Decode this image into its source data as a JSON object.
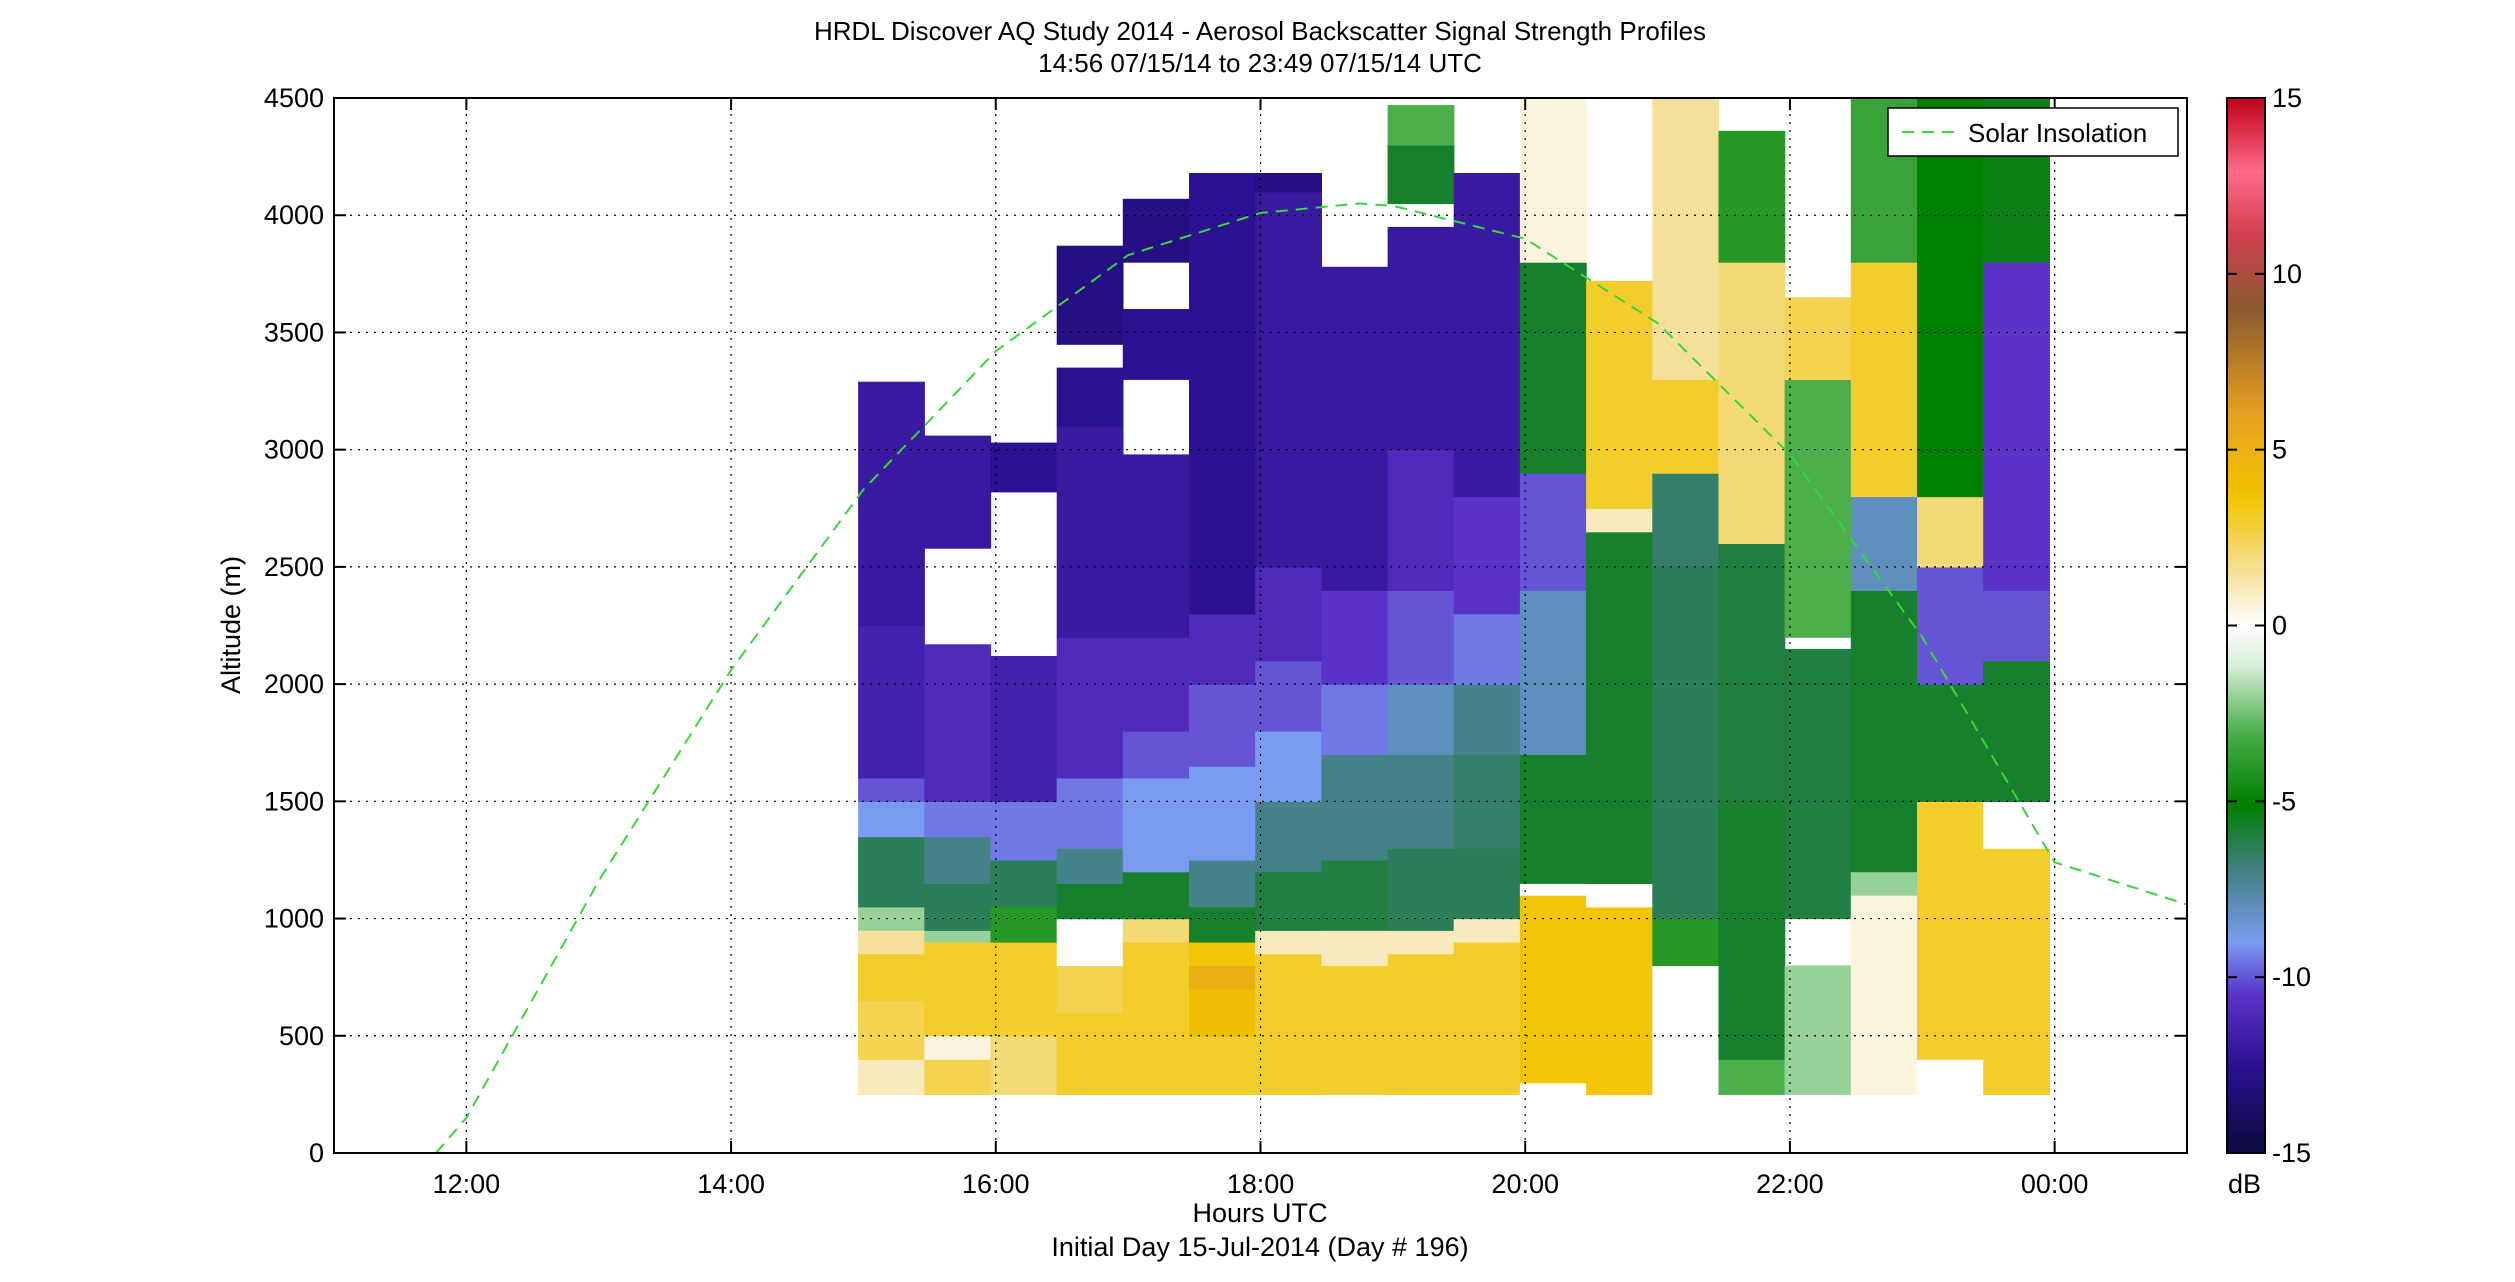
{
  "chart_data": {
    "type": "heatmap",
    "title": "HRDL Discover AQ Study 2014 - Aerosol Backscatter Signal Strength Profiles",
    "subtitle": "14:56 07/15/14 to 23:49 07/15/14  UTC",
    "xlabel": "Hours UTC",
    "xlabel2": "Initial Day 15-Jul-2014 (Day # 196)",
    "ylabel": "Altitude (m)",
    "x_ticks": [
      12,
      14,
      16,
      18,
      20,
      22,
      24
    ],
    "x_tick_labels": [
      "12:00",
      "14:00",
      "16:00",
      "18:00",
      "20:00",
      "22:00",
      "00:00"
    ],
    "xlim": [
      11,
      25
    ],
    "y_ticks": [
      0,
      500,
      1000,
      1500,
      2000,
      2500,
      3000,
      3500,
      4000,
      4500
    ],
    "y_tick_labels": [
      "0",
      "500",
      "1000",
      "1500",
      "2000",
      "2500",
      "3000",
      "3500",
      "4000",
      "4500"
    ],
    "ylim": [
      0,
      4500
    ],
    "grid": true,
    "colorbar": {
      "label": "dB",
      "range": [
        -15,
        15
      ],
      "ticks": [
        -15,
        -10,
        -5,
        0,
        5,
        10,
        15
      ],
      "tick_labels": [
        "-15",
        "-10",
        "-5",
        "0",
        "5",
        "10",
        "15"
      ]
    },
    "legend": {
      "position": "top-right",
      "entries": [
        "Solar Insolation"
      ]
    },
    "solar_insolation": {
      "x": [
        11.77,
        12,
        13,
        14,
        15,
        16,
        17,
        18,
        18.75,
        19,
        20,
        21,
        22,
        23,
        24,
        25
      ],
      "y": [
        0,
        150,
        1160,
        2060,
        2830,
        3420,
        3830,
        4010,
        4050,
        4040,
        3900,
        3540,
        2980,
        2200,
        1240,
        1060
      ]
    },
    "profiles": [
      {
        "x0": 14.96,
        "x1": 15.46,
        "top": 3290,
        "values": [
          [
            250,
            400,
            1
          ],
          [
            400,
            650,
            2.5
          ],
          [
            650,
            850,
            3
          ],
          [
            850,
            950,
            1.5
          ],
          [
            950,
            1050,
            -2
          ],
          [
            1050,
            1350,
            -7
          ],
          [
            1350,
            1500,
            -9
          ],
          [
            1500,
            1600,
            -10
          ],
          [
            1600,
            2250,
            -11.5
          ],
          [
            2250,
            3290,
            -12
          ]
        ]
      },
      {
        "x0": 15.46,
        "x1": 15.96,
        "top": 3060,
        "values": [
          [
            250,
            400,
            2.5
          ],
          [
            400,
            500,
            0.5
          ],
          [
            500,
            900,
            3
          ],
          [
            900,
            950,
            -2
          ],
          [
            950,
            1150,
            -7
          ],
          [
            1150,
            1350,
            -8
          ],
          [
            1350,
            1500,
            -9.5
          ],
          [
            1500,
            2170,
            -11
          ],
          [
            2170,
            2580,
            "gap"
          ],
          [
            2580,
            3060,
            -12
          ]
        ]
      },
      {
        "x0": 15.96,
        "x1": 16.46,
        "top": 3030,
        "values": [
          [
            250,
            500,
            2
          ],
          [
            500,
            900,
            3
          ],
          [
            900,
            1050,
            -4
          ],
          [
            1050,
            1250,
            -7
          ],
          [
            1250,
            1500,
            -9.5
          ],
          [
            1500,
            2120,
            -11.5
          ],
          [
            2120,
            2820,
            "gap"
          ],
          [
            2820,
            3030,
            -12.5
          ]
        ]
      },
      {
        "x0": 16.46,
        "x1": 16.96,
        "top": 3870,
        "values": [
          [
            250,
            600,
            3
          ],
          [
            600,
            800,
            2.5
          ],
          [
            800,
            1000,
            0
          ],
          [
            1000,
            1150,
            -6
          ],
          [
            1150,
            1300,
            -8
          ],
          [
            1300,
            1600,
            -9.5
          ],
          [
            1600,
            2200,
            -11
          ],
          [
            2200,
            3100,
            -12
          ],
          [
            3100,
            3350,
            -12.5
          ],
          [
            3350,
            3450,
            "gap"
          ],
          [
            3450,
            3870,
            -13
          ]
        ]
      },
      {
        "x0": 16.96,
        "x1": 17.46,
        "top": 4070,
        "values": [
          [
            250,
            900,
            3
          ],
          [
            900,
            1000,
            2
          ],
          [
            1000,
            1200,
            -6
          ],
          [
            1200,
            1600,
            -9
          ],
          [
            1600,
            1800,
            -10
          ],
          [
            1800,
            2200,
            -11
          ],
          [
            2200,
            2980,
            -12
          ],
          [
            2980,
            3300,
            "gap"
          ],
          [
            3300,
            3600,
            -12.5
          ],
          [
            3600,
            3800,
            "gap"
          ],
          [
            3800,
            4070,
            -13
          ]
        ]
      },
      {
        "x0": 17.46,
        "x1": 17.96,
        "top": 4180,
        "values": [
          [
            250,
            500,
            3
          ],
          [
            500,
            700,
            4
          ],
          [
            700,
            800,
            5
          ],
          [
            800,
            900,
            3.5
          ],
          [
            900,
            1050,
            -6
          ],
          [
            1050,
            1250,
            -8
          ],
          [
            1250,
            1650,
            -9
          ],
          [
            1650,
            2000,
            -10
          ],
          [
            2000,
            2300,
            -11
          ],
          [
            2300,
            4180,
            -12.5
          ]
        ]
      },
      {
        "x0": 17.96,
        "x1": 18.46,
        "top": 4180,
        "values": [
          [
            250,
            850,
            3
          ],
          [
            850,
            950,
            1
          ],
          [
            950,
            1200,
            -6.5
          ],
          [
            1200,
            1500,
            -8
          ],
          [
            1500,
            1800,
            -9
          ],
          [
            1800,
            2100,
            -10
          ],
          [
            2100,
            2500,
            -11
          ],
          [
            2500,
            4100,
            -12
          ],
          [
            4100,
            4180,
            -13
          ]
        ]
      },
      {
        "x0": 18.46,
        "x1": 18.96,
        "top": 3780,
        "values": [
          [
            250,
            800,
            3
          ],
          [
            800,
            950,
            1
          ],
          [
            950,
            1250,
            -6.5
          ],
          [
            1250,
            1700,
            -8
          ],
          [
            1700,
            2000,
            -9.5
          ],
          [
            2000,
            2400,
            -10.5
          ],
          [
            2400,
            3780,
            -12
          ]
        ]
      },
      {
        "x0": 18.96,
        "x1": 19.46,
        "top": 4470,
        "values": [
          [
            250,
            850,
            3
          ],
          [
            850,
            950,
            1
          ],
          [
            950,
            1300,
            -7
          ],
          [
            1300,
            1700,
            -8
          ],
          [
            1700,
            2000,
            -8.5
          ],
          [
            2000,
            2400,
            -10
          ],
          [
            2400,
            3000,
            -11
          ],
          [
            3000,
            3950,
            -12
          ],
          [
            3950,
            4050,
            "gap"
          ],
          [
            4050,
            4300,
            -6
          ],
          [
            4300,
            4470,
            -3
          ]
        ]
      },
      {
        "x0": 19.46,
        "x1": 19.96,
        "top": 4180,
        "values": [
          [
            250,
            900,
            3
          ],
          [
            900,
            1000,
            1
          ],
          [
            1000,
            1300,
            -7
          ],
          [
            1300,
            1700,
            -7.5
          ],
          [
            1700,
            2000,
            -8
          ],
          [
            2000,
            2300,
            -9.5
          ],
          [
            2300,
            2800,
            -10.5
          ],
          [
            2800,
            4180,
            -12
          ]
        ]
      },
      {
        "x0": 19.96,
        "x1": 20.46,
        "top": 4500,
        "values": [
          [
            250,
            300,
            0
          ],
          [
            300,
            1100,
            3.5
          ],
          [
            1100,
            1150,
            0
          ],
          [
            1150,
            1700,
            -6
          ],
          [
            1700,
            2400,
            -8.5
          ],
          [
            2400,
            2900,
            -10
          ],
          [
            2900,
            3800,
            -6
          ],
          [
            3800,
            4500,
            0.5
          ]
        ]
      },
      {
        "x0": 20.46,
        "x1": 20.96,
        "top": 3720,
        "values": [
          [
            250,
            1050,
            3.5
          ],
          [
            1050,
            1150,
            0
          ],
          [
            1150,
            2650,
            -6
          ],
          [
            2650,
            2750,
            1
          ],
          [
            2750,
            3720,
            3
          ]
        ]
      },
      {
        "x0": 20.96,
        "x1": 21.46,
        "top": 4500,
        "values": [
          [
            250,
            800,
            0
          ],
          [
            800,
            1000,
            -4
          ],
          [
            1000,
            2500,
            -7
          ],
          [
            2500,
            2900,
            -7.5
          ],
          [
            2900,
            3300,
            3
          ],
          [
            3300,
            4500,
            1.5
          ]
        ]
      },
      {
        "x0": 21.46,
        "x1": 21.96,
        "top": 4360,
        "values": [
          [
            250,
            400,
            -3
          ],
          [
            400,
            1500,
            -6
          ],
          [
            1500,
            2600,
            -6.5
          ],
          [
            2600,
            3800,
            2
          ],
          [
            3800,
            4360,
            -4
          ]
        ]
      },
      {
        "x0": 21.96,
        "x1": 22.46,
        "top": 3650,
        "values": [
          [
            250,
            800,
            -2
          ],
          [
            800,
            1000,
            "gap"
          ],
          [
            1000,
            2150,
            -6.5
          ],
          [
            2150,
            2200,
            "gap"
          ],
          [
            2200,
            3300,
            -3
          ],
          [
            3300,
            3650,
            2.5
          ]
        ]
      },
      {
        "x0": 22.46,
        "x1": 22.96,
        "top": 4500,
        "values": [
          [
            250,
            1100,
            0.5
          ],
          [
            1100,
            1200,
            -2
          ],
          [
            1200,
            2400,
            -6
          ],
          [
            2400,
            2800,
            -8.5
          ],
          [
            2800,
            3800,
            3
          ],
          [
            3800,
            4500,
            -3.5
          ]
        ]
      },
      {
        "x0": 22.96,
        "x1": 23.46,
        "top": 4500,
        "values": [
          [
            250,
            400,
            0
          ],
          [
            400,
            1500,
            3
          ],
          [
            1500,
            2000,
            -6
          ],
          [
            2000,
            2500,
            -10
          ],
          [
            2500,
            2800,
            2
          ],
          [
            2800,
            4500,
            -5
          ]
        ]
      },
      {
        "x0": 23.46,
        "x1": 23.96,
        "top": 4500,
        "values": [
          [
            250,
            1300,
            3
          ],
          [
            1300,
            1500,
            0
          ],
          [
            1500,
            2100,
            -6
          ],
          [
            2100,
            2400,
            -10
          ],
          [
            2400,
            3800,
            -10.5
          ],
          [
            3800,
            4500,
            -5.5
          ]
        ]
      }
    ]
  },
  "legend_label": "Solar Insolation",
  "colors": {
    "solar_line": "#39d639",
    "grid": "#000000",
    "gap": "#ffffff"
  }
}
